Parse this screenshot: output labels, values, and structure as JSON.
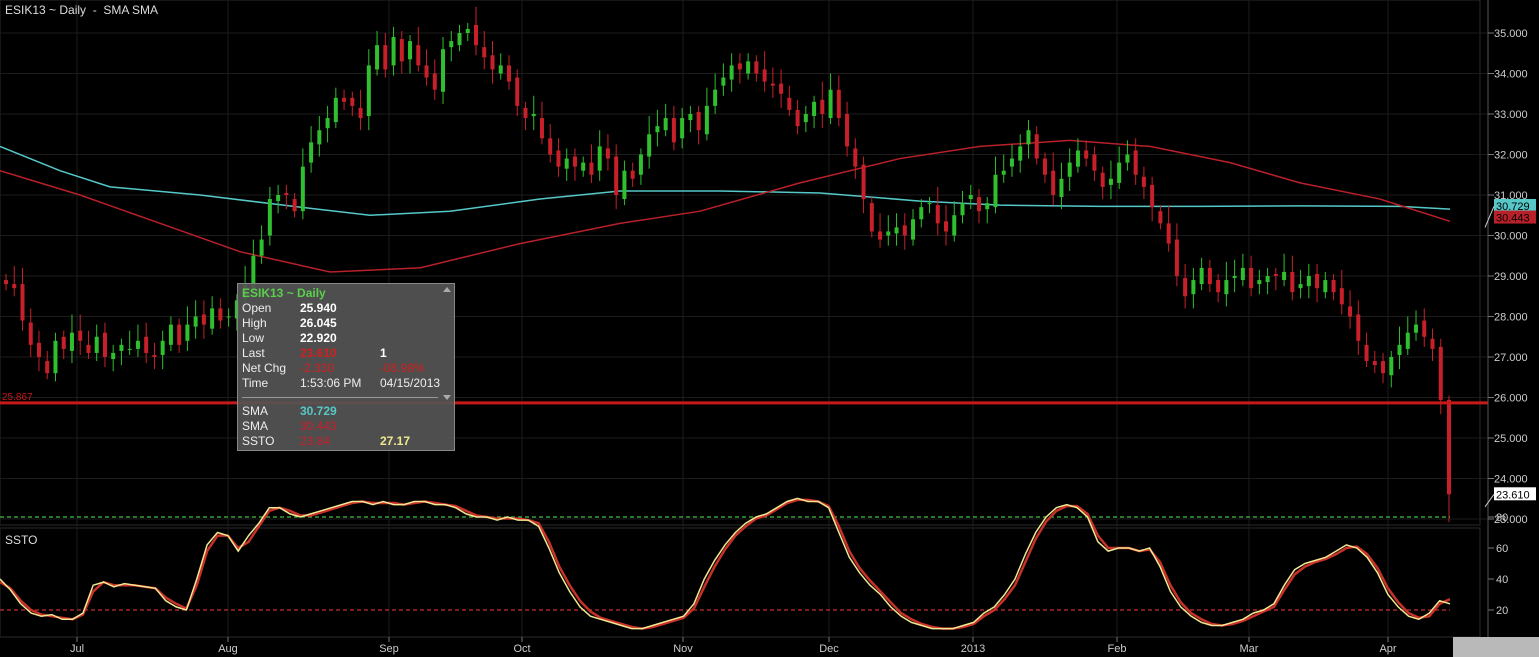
{
  "header": {
    "title": "ESIK13 ~ Daily  -  SMA SMA"
  },
  "lower_panel": {
    "label": "SSTO"
  },
  "tooltip": {
    "title": "ESIK13 ~ Daily",
    "open_label": "Open",
    "open_value": "25.940",
    "high_label": "High",
    "high_value": "26.045",
    "low_label": "Low",
    "low_value": "22.920",
    "last_label": "Last",
    "last_value": "23.610",
    "last_size": "1",
    "netchg_label": "Net Chg",
    "netchg_value": "-2.330",
    "netchg_pct": "-08.98%",
    "time_label": "Time",
    "time_value": "1:53:06 PM",
    "date_value": "04/15/2013",
    "sma1_label": "SMA",
    "sma1_value": "30.729",
    "sma2_label": "SMA",
    "sma2_value": "30.443",
    "ssto_label": "SSTO",
    "ssto_k": "23.84",
    "ssto_d": "27.17"
  },
  "colors": {
    "up": "#2fbf2f",
    "down": "#c8202a",
    "sma_fast": "#56c8c8",
    "sma_slow": "#b8202a",
    "k_line": "#f0e890",
    "d_line": "#c8302a",
    "grid": "#1c1c1c"
  },
  "chart_data": [
    {
      "type": "candlestick",
      "title": "ESIK13 ~ Daily",
      "y_range": [
        22.7,
        35.4
      ],
      "y_ticks": [
        "35.000",
        "34.000",
        "33.000",
        "32.000",
        "31.000",
        "30.000",
        "29.000",
        "28.000",
        "27.000",
        "26.000",
        "25.000",
        "24.000",
        "23.000"
      ],
      "x_ticks": [
        "Jul",
        "Aug",
        "Sep",
        "Oct",
        "Nov",
        "Dec",
        "2013",
        "Feb",
        "Mar",
        "Apr"
      ],
      "price_line": {
        "value": 25.867,
        "label": "25.867"
      },
      "last_price_label": "23.610",
      "sma_labels": {
        "fast": "30.729",
        "slow": "30.443"
      },
      "closes": [
        28.8,
        28.7,
        27.9,
        27.3,
        27.0,
        26.6,
        27.4,
        27.2,
        27.6,
        27.4,
        27.1,
        27.5,
        27.0,
        27.1,
        27.3,
        27.2,
        27.4,
        27.1,
        27.0,
        27.4,
        27.8,
        27.3,
        27.8,
        28.0,
        27.8,
        28.2,
        27.9,
        28.0,
        28.4,
        28.8,
        29.5,
        29.9,
        30.9,
        31.0,
        31.0,
        30.6,
        31.7,
        32.3,
        32.6,
        32.9,
        33.4,
        33.3,
        33.2,
        32.9,
        34.2,
        34.7,
        34.1,
        34.9,
        34.3,
        34.8,
        34.2,
        33.9,
        33.6,
        34.6,
        34.8,
        35.0,
        35.1,
        34.7,
        34.4,
        34.1,
        34.2,
        33.8,
        33.2,
        32.9,
        33.0,
        32.4,
        32.0,
        31.7,
        31.9,
        31.7,
        31.8,
        31.5,
        32.2,
        31.9,
        31.0,
        31.6,
        31.4,
        32.0,
        32.5,
        32.7,
        32.9,
        32.3,
        32.9,
        33.0,
        32.6,
        33.2,
        33.6,
        33.9,
        34.2,
        34.1,
        34.3,
        34.0,
        33.8,
        33.7,
        33.5,
        33.1,
        32.7,
        33.0,
        33.3,
        33.0,
        33.6,
        32.9,
        32.2,
        31.7,
        30.9,
        30.1,
        29.9,
        30.1,
        30.2,
        30.0,
        30.4,
        30.7,
        30.8,
        30.3,
        30.1,
        30.5,
        30.8,
        31.0,
        30.6,
        30.8,
        31.5,
        31.6,
        31.9,
        32.2,
        32.6,
        31.9,
        31.5,
        31.0,
        31.4,
        31.8,
        32.1,
        31.9,
        31.6,
        31.2,
        31.4,
        31.8,
        32.0,
        31.5,
        31.2,
        30.7,
        30.3,
        29.8,
        29.0,
        28.5,
        28.9,
        29.2,
        28.8,
        28.6,
        28.9,
        29.0,
        29.2,
        28.7,
        28.9,
        29.0,
        29.0,
        29.1,
        28.6,
        28.8,
        29.0,
        28.7,
        28.9,
        28.6,
        28.3,
        28.0,
        27.4,
        26.9,
        26.8,
        26.6,
        27.0,
        27.3,
        27.6,
        27.8,
        27.5,
        27.2,
        25.94,
        23.61
      ]
    },
    {
      "type": "line",
      "title": "SSTO",
      "y_range": [
        0,
        100
      ],
      "y_ticks": [
        "80",
        "60",
        "40",
        "20"
      ],
      "levels": [
        80,
        20
      ],
      "series": [
        {
          "values": [
            40,
            33,
            24,
            18,
            16,
            17,
            14,
            14,
            18,
            36,
            38,
            35,
            37,
            36,
            35,
            34,
            26,
            22,
            20,
            40,
            62,
            70,
            68,
            58,
            68,
            76,
            86,
            86,
            82,
            80,
            82,
            84,
            86,
            88,
            90,
            90,
            88,
            90,
            88,
            88,
            90,
            90,
            88,
            88,
            86,
            82,
            80,
            80,
            78,
            80,
            78,
            78,
            74,
            60,
            44,
            32,
            22,
            16,
            14,
            12,
            10,
            8,
            8,
            10,
            12,
            14,
            16,
            24,
            40,
            52,
            62,
            70,
            76,
            80,
            82,
            86,
            90,
            92,
            90,
            90,
            86,
            70,
            54,
            44,
            36,
            30,
            22,
            16,
            12,
            10,
            8,
            8,
            8,
            10,
            12,
            18,
            22,
            30,
            40,
            56,
            70,
            80,
            86,
            88,
            86,
            80,
            64,
            58,
            60,
            60,
            58,
            60,
            48,
            32,
            22,
            16,
            12,
            10,
            10,
            12,
            14,
            18,
            20,
            24,
            36,
            46,
            50,
            52,
            54,
            58,
            62,
            60,
            54,
            44,
            30,
            22,
            16,
            14,
            18,
            26,
            24
          ]
        },
        {
          "values": [
            38,
            34,
            26,
            20,
            17,
            16,
            15,
            14,
            17,
            32,
            38,
            36,
            36,
            36,
            35,
            34,
            28,
            24,
            21,
            36,
            58,
            68,
            68,
            60,
            64,
            74,
            84,
            86,
            84,
            81,
            81,
            83,
            85,
            87,
            89,
            90,
            89,
            89,
            89,
            88,
            89,
            90,
            89,
            88,
            87,
            84,
            81,
            80,
            79,
            79,
            79,
            78,
            76,
            64,
            48,
            36,
            26,
            19,
            15,
            13,
            11,
            9,
            8,
            9,
            11,
            13,
            15,
            21,
            35,
            48,
            59,
            68,
            74,
            79,
            81,
            85,
            89,
            91,
            91,
            90,
            87,
            74,
            58,
            47,
            39,
            32,
            25,
            18,
            14,
            11,
            9,
            8,
            8,
            9,
            11,
            16,
            20,
            27,
            36,
            51,
            66,
            77,
            84,
            87,
            87,
            82,
            68,
            60,
            60,
            60,
            58,
            59,
            51,
            36,
            25,
            18,
            14,
            11,
            10,
            11,
            13,
            16,
            19,
            22,
            33,
            43,
            48,
            51,
            53,
            56,
            60,
            61,
            56,
            47,
            34,
            25,
            18,
            15,
            16,
            24,
            27
          ]
        }
      ]
    }
  ]
}
